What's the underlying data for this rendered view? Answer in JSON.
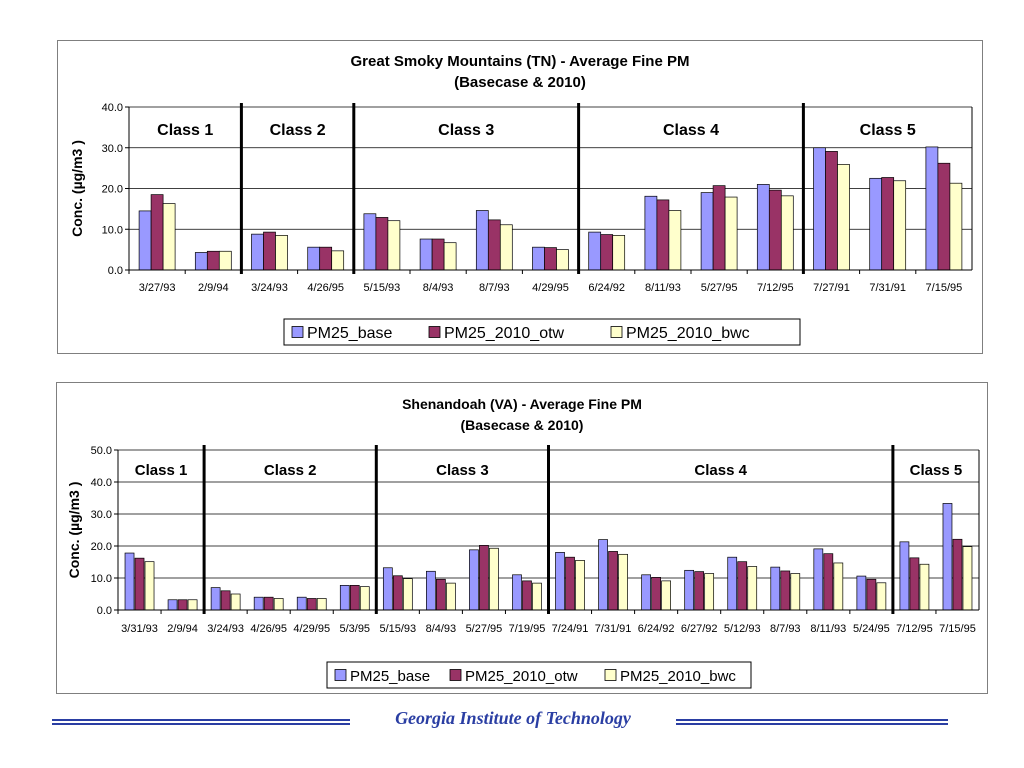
{
  "colors": {
    "base": "#9999ff",
    "otw": "#993366",
    "bwc": "#ffffcc",
    "grid": "#000000",
    "footer": "#2a3ea3"
  },
  "footer": {
    "text": "Georgia Institute of Technology"
  },
  "chart_data": [
    {
      "type": "bar",
      "title": "Great Smoky Mountains (TN) - Average Fine PM",
      "subtitle": "(Basecase & 2010)",
      "ylabel": "Conc.  (µg/m3 )",
      "ylim": [
        0,
        40
      ],
      "yticks": [
        "0.0",
        "10.0",
        "20.0",
        "30.0",
        "40.0"
      ],
      "grid": true,
      "legend": "bottom",
      "categories": [
        "3/27/93",
        "2/9/94",
        "3/24/93",
        "4/26/95",
        "5/15/93",
        "8/4/93",
        "8/7/93",
        "4/29/95",
        "6/24/92",
        "8/11/93",
        "5/27/95",
        "7/12/95",
        "7/27/91",
        "7/31/91",
        "7/15/95"
      ],
      "series": [
        {
          "name": "PM25_base",
          "values": [
            14.5,
            4.3,
            8.8,
            5.6,
            13.8,
            7.6,
            14.6,
            5.6,
            9.3,
            18.1,
            19.0,
            21.0,
            30.0,
            22.5,
            30.2
          ]
        },
        {
          "name": "PM25_2010_otw",
          "values": [
            18.5,
            4.6,
            9.3,
            5.6,
            12.9,
            7.6,
            12.3,
            5.5,
            8.7,
            17.2,
            20.7,
            19.6,
            29.1,
            22.7,
            26.2
          ]
        },
        {
          "name": "PM25_2010_bwc",
          "values": [
            16.3,
            4.6,
            8.5,
            4.7,
            12.1,
            6.7,
            11.1,
            5.0,
            8.5,
            14.6,
            17.9,
            18.2,
            25.9,
            21.9,
            21.3
          ]
        }
      ],
      "classes": [
        {
          "label": "Class 1",
          "start": 0,
          "end": 1
        },
        {
          "label": "Class 2",
          "start": 2,
          "end": 3
        },
        {
          "label": "Class 3",
          "start": 4,
          "end": 7
        },
        {
          "label": "Class 4",
          "start": 8,
          "end": 11
        },
        {
          "label": "Class 5",
          "start": 12,
          "end": 14
        }
      ]
    },
    {
      "type": "bar",
      "title": "Shenandoah (VA) - Average Fine PM",
      "subtitle": "(Basecase & 2010)",
      "ylabel": "Conc.  (µg/m3 )",
      "ylim": [
        0,
        50
      ],
      "yticks": [
        "0.0",
        "10.0",
        "20.0",
        "30.0",
        "40.0",
        "50.0"
      ],
      "grid": true,
      "legend": "bottom",
      "categories": [
        "3/31/93",
        "2/9/94",
        "3/24/93",
        "4/26/95",
        "4/29/95",
        "5/3/95",
        "5/15/93",
        "8/4/93",
        "5/27/95",
        "7/19/95",
        "7/24/91",
        "7/31/91",
        "6/24/92",
        "6/27/92",
        "5/12/93",
        "8/7/93",
        "8/11/93",
        "5/24/95",
        "7/12/95",
        "7/15/95"
      ],
      "series": [
        {
          "name": "PM25_base",
          "values": [
            17.8,
            3.2,
            7.0,
            4.0,
            4.0,
            7.7,
            13.2,
            12.1,
            18.8,
            11.0,
            18.0,
            22.0,
            11.0,
            12.4,
            16.5,
            13.4,
            19.1,
            10.6,
            21.3,
            33.3
          ]
        },
        {
          "name": "PM25_2010_otw",
          "values": [
            16.2,
            3.2,
            6.0,
            4.0,
            3.6,
            7.7,
            10.7,
            9.6,
            20.2,
            9.1,
            16.5,
            18.3,
            10.2,
            12.0,
            15.1,
            12.2,
            17.6,
            9.6,
            16.3,
            22.1
          ]
        },
        {
          "name": "PM25_2010_bwc",
          "values": [
            15.1,
            3.2,
            5.0,
            3.6,
            3.6,
            7.3,
            9.8,
            8.4,
            19.3,
            8.4,
            15.5,
            17.4,
            9.1,
            11.4,
            13.6,
            11.4,
            14.7,
            8.5,
            14.3,
            19.8
          ]
        }
      ],
      "classes": [
        {
          "label": "Class 1",
          "start": 0,
          "end": 1
        },
        {
          "label": "Class 2",
          "start": 2,
          "end": 5
        },
        {
          "label": "Class 3",
          "start": 6,
          "end": 9
        },
        {
          "label": "Class 4",
          "start": 10,
          "end": 17
        },
        {
          "label": "Class 5",
          "start": 18,
          "end": 19
        }
      ]
    }
  ]
}
